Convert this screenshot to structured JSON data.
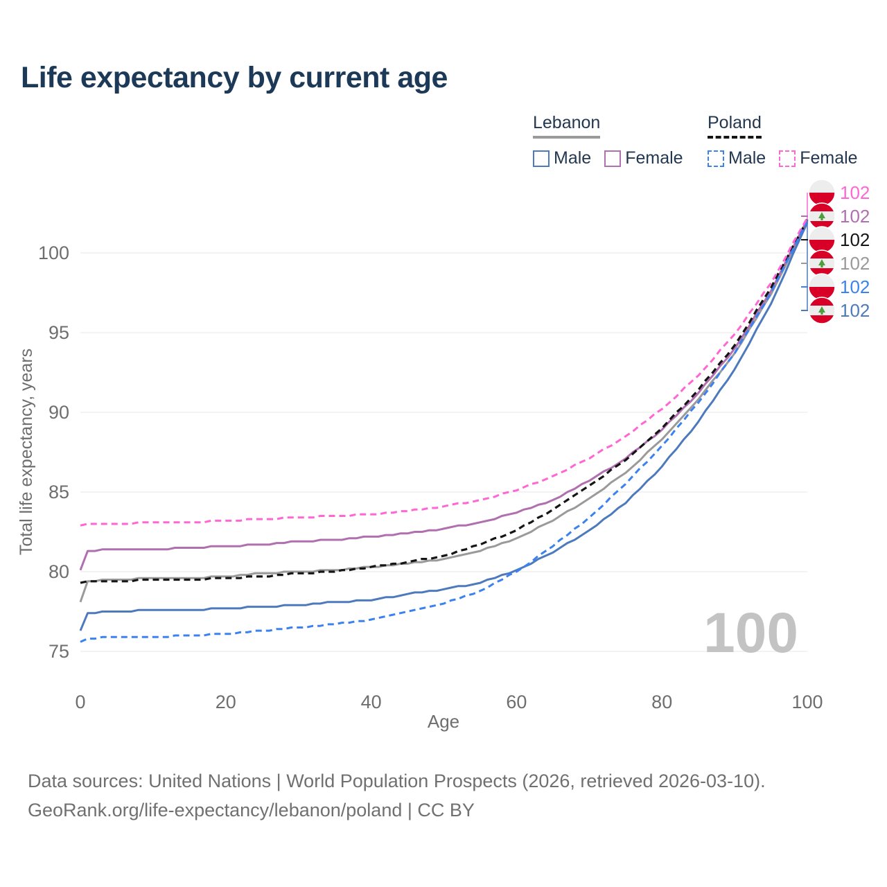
{
  "title": "Life expectancy by current age",
  "legend": {
    "groups": [
      {
        "label": "Lebanon",
        "underline": "solid",
        "underline_color": "#9a9a9a"
      },
      {
        "label": "Poland",
        "underline": "dashed",
        "underline_color": "#151515"
      }
    ],
    "items": [
      {
        "label": "Male",
        "color": "#4d79bd",
        "dashed": false
      },
      {
        "label": "Female",
        "color": "#b06fae",
        "dashed": false
      },
      {
        "label": "Male",
        "color": "#3b82f0",
        "dashed": true
      },
      {
        "label": "Female",
        "color": "#ff66d4",
        "dashed": true
      }
    ]
  },
  "watermark": "100",
  "footer": {
    "line1": "Data sources: United Nations | World Population Prospects (2026, retrieved 2026-03-10).",
    "line2": "GeoRank.org/life-expectancy/lebanon/poland | CC BY"
  },
  "colors": {
    "title_text": "#1c3a57",
    "legend_text": "#233750",
    "axis_text": "#6e6e6e",
    "gridline": "#ececec",
    "watermark": "#c3c3c3",
    "footer_text": "#707070",
    "flag_red": "#d80027",
    "flag_white": "#ededed",
    "cedar_green": "#4f9e3d"
  },
  "chart_data": {
    "type": "line",
    "title": "Life expectancy by current age",
    "xlabel": "Age",
    "ylabel": "Total life expectancy, years",
    "xlim": [
      0,
      100
    ],
    "ylim": [
      75,
      102.5
    ],
    "x_ticks": [
      0,
      20,
      40,
      60,
      80,
      100
    ],
    "y_ticks": [
      75,
      80,
      85,
      90,
      95,
      100
    ],
    "grid": "horizontal",
    "legend_position": "top-right",
    "current_age_indicator": "100",
    "ages": [
      0,
      1,
      5,
      10,
      15,
      20,
      25,
      30,
      35,
      40,
      45,
      50,
      55,
      60,
      65,
      70,
      75,
      80,
      85,
      90,
      95,
      100
    ],
    "series": [
      {
        "name": "Lebanon Total",
        "country": "lebanon",
        "sex": "total",
        "color": "#9a9a9a",
        "dashed": false,
        "label_row": 3,
        "end_label": "102",
        "values": [
          78.1,
          79.4,
          79.5,
          79.6,
          79.6,
          79.7,
          79.9,
          80.0,
          80.1,
          80.3,
          80.5,
          80.8,
          81.3,
          82.1,
          83.2,
          84.6,
          86.2,
          88.3,
          90.8,
          93.7,
          97.4,
          102.0
        ]
      },
      {
        "name": "Lebanon Female",
        "country": "lebanon",
        "sex": "female",
        "color": "#b06fae",
        "dashed": false,
        "label_row": 1,
        "end_label": "102",
        "values": [
          80.1,
          81.3,
          81.4,
          81.4,
          81.5,
          81.6,
          81.7,
          81.9,
          82.0,
          82.2,
          82.4,
          82.7,
          83.1,
          83.7,
          84.5,
          85.7,
          87.1,
          88.9,
          91.2,
          94.0,
          97.6,
          102.1
        ]
      },
      {
        "name": "Lebanon Male",
        "country": "lebanon",
        "sex": "male",
        "color": "#4d79bd",
        "dashed": false,
        "label_row": 5,
        "end_label": "102",
        "values": [
          76.3,
          77.4,
          77.5,
          77.6,
          77.6,
          77.7,
          77.8,
          77.9,
          78.1,
          78.2,
          78.6,
          78.9,
          79.3,
          80.1,
          81.2,
          82.6,
          84.3,
          86.6,
          89.4,
          92.7,
          96.8,
          101.9
        ]
      },
      {
        "name": "Poland Total",
        "country": "poland",
        "sex": "total",
        "color": "#151515",
        "dashed": true,
        "label_row": 2,
        "end_label": "102",
        "values": [
          79.3,
          79.4,
          79.4,
          79.5,
          79.5,
          79.6,
          79.7,
          79.9,
          80.0,
          80.3,
          80.6,
          81.0,
          81.7,
          82.6,
          83.9,
          85.4,
          87.0,
          89.0,
          91.4,
          94.2,
          97.8,
          102.1
        ]
      },
      {
        "name": "Poland Male",
        "country": "poland",
        "sex": "male",
        "color": "#3b82f0",
        "dashed": true,
        "label_row": 4,
        "end_label": "102",
        "values": [
          75.6,
          75.8,
          75.9,
          75.9,
          76.0,
          76.1,
          76.3,
          76.5,
          76.7,
          77.0,
          77.5,
          78.0,
          78.8,
          80.0,
          81.6,
          83.4,
          85.5,
          87.9,
          90.6,
          93.7,
          97.5,
          102.0
        ]
      },
      {
        "name": "Poland Female",
        "country": "poland",
        "sex": "female",
        "color": "#ff66d4",
        "dashed": true,
        "label_row": 0,
        "end_label": "102",
        "values": [
          82.9,
          83.0,
          83.0,
          83.1,
          83.1,
          83.2,
          83.3,
          83.4,
          83.5,
          83.6,
          83.8,
          84.1,
          84.5,
          85.1,
          86.0,
          87.1,
          88.5,
          90.2,
          92.3,
          94.9,
          98.1,
          102.2
        ]
      }
    ]
  }
}
